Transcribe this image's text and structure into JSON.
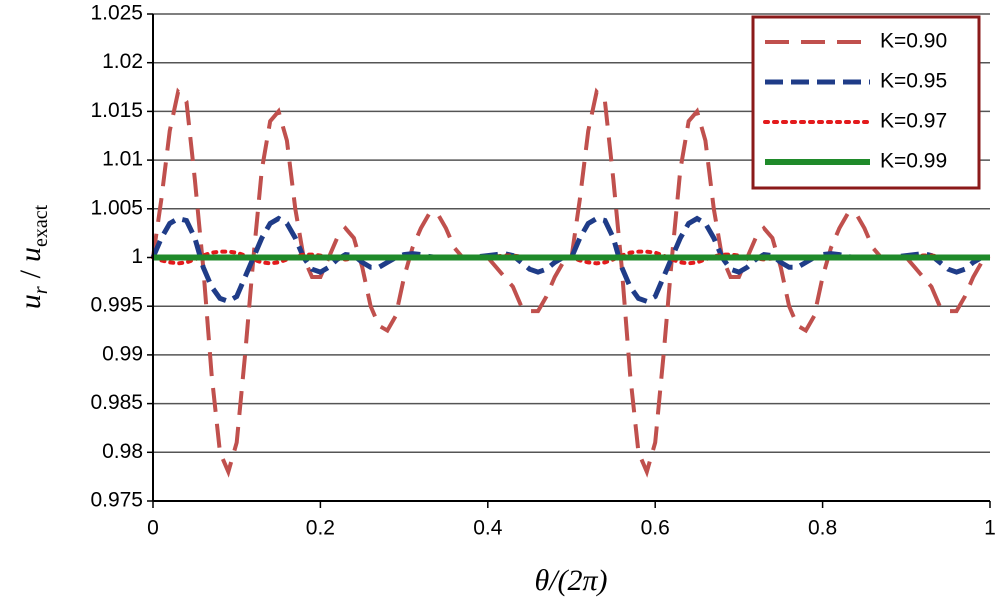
{
  "chart_data": {
    "type": "line",
    "xlabel": "θ/(2π)",
    "ylabel": [
      "u",
      "r",
      "/",
      "u",
      "exact"
    ],
    "xlim": [
      0,
      1
    ],
    "xticks": [
      0,
      0.2,
      0.4,
      0.6,
      0.8,
      1
    ],
    "ylim": [
      0.975,
      1.025
    ],
    "yticks": [
      0.975,
      0.98,
      0.985,
      0.99,
      0.995,
      1,
      1.005,
      1.01,
      1.015,
      1.02,
      1.025
    ],
    "grid": true,
    "legend": "upper right",
    "x": [
      0,
      0.01,
      0.02,
      0.03,
      0.04,
      0.05,
      0.06,
      0.07,
      0.08,
      0.09,
      0.1,
      0.11,
      0.12,
      0.13,
      0.14,
      0.15,
      0.16,
      0.17,
      0.18,
      0.19,
      0.2,
      0.21,
      0.22,
      0.23,
      0.24,
      0.25,
      0.26,
      0.27,
      0.28,
      0.29,
      0.3,
      0.31,
      0.32,
      0.33,
      0.34,
      0.35,
      0.36,
      0.37,
      0.38,
      0.39,
      0.4,
      0.41,
      0.42,
      0.43,
      0.44,
      0.45,
      0.46,
      0.47,
      0.48,
      0.49,
      0.5,
      0.51,
      0.52,
      0.53,
      0.54,
      0.55,
      0.56,
      0.57,
      0.58,
      0.59,
      0.6,
      0.61,
      0.62,
      0.63,
      0.64,
      0.65,
      0.66,
      0.67,
      0.68,
      0.69,
      0.7,
      0.71,
      0.72,
      0.73,
      0.74,
      0.75,
      0.76,
      0.77,
      0.78,
      0.79,
      0.8,
      0.81,
      0.82,
      0.83,
      0.84,
      0.85,
      0.86,
      0.87,
      0.88,
      0.89,
      0.9,
      0.91,
      0.92,
      0.93,
      0.94,
      0.95,
      0.96,
      0.97,
      0.98,
      0.99,
      1
    ],
    "series": [
      {
        "name": "K=0.90",
        "color": "#c0504d",
        "dash": "dashed",
        "line_width": 4,
        "values": [
          1.0,
          1.006,
          1.013,
          1.017,
          1.016,
          1.008,
          0.999,
          0.988,
          0.98,
          0.978,
          0.981,
          0.99,
          1.0,
          1.009,
          1.014,
          1.015,
          1.012,
          1.005,
          1.0,
          0.998,
          0.998,
          1.0,
          1.002,
          1.003,
          1.002,
          0.999,
          0.995,
          0.993,
          0.9925,
          0.994,
          0.998,
          1.001,
          1.003,
          1.0045,
          1.0045,
          1.003,
          1.001,
          1.0,
          1.0,
          1.0,
          1.0,
          0.999,
          0.998,
          0.997,
          0.995,
          0.9945,
          0.9945,
          0.996,
          0.998,
          0.9995,
          1.0,
          1.006,
          1.013,
          1.017,
          1.016,
          1.008,
          0.999,
          0.988,
          0.98,
          0.978,
          0.981,
          0.99,
          1.0,
          1.009,
          1.014,
          1.015,
          1.012,
          1.005,
          1.0,
          0.998,
          0.998,
          1.0,
          1.002,
          1.003,
          1.002,
          0.999,
          0.995,
          0.993,
          0.9925,
          0.994,
          0.998,
          1.001,
          1.003,
          1.0045,
          1.0045,
          1.003,
          1.001,
          1.0,
          1.0,
          1.0,
          1.0,
          0.999,
          0.998,
          0.997,
          0.995,
          0.9945,
          0.9945,
          0.996,
          0.998,
          0.9995,
          1.0
        ]
      },
      {
        "name": "K=0.95",
        "color": "#1f3c88",
        "dash": "dashed",
        "line_width": 5,
        "values": [
          1.0,
          1.002,
          1.0035,
          1.004,
          1.0038,
          1.002,
          0.999,
          0.997,
          0.9958,
          0.9955,
          0.996,
          0.998,
          1.0,
          1.002,
          1.0035,
          1.004,
          1.0035,
          1.002,
          1.0,
          0.9988,
          0.9985,
          0.999,
          0.9998,
          1.0003,
          1.0002,
          0.9995,
          0.999,
          0.999,
          0.9995,
          1.0,
          1.0003,
          1.0004,
          1.0003,
          1.0001,
          1.0,
          1.0,
          1.0,
          1.0,
          1.0,
          1.0001,
          1.0002,
          1.0003,
          1.0004,
          1.0002,
          0.9995,
          0.9988,
          0.9985,
          0.9988,
          0.9995,
          1.0,
          1.0,
          1.002,
          1.0035,
          1.004,
          1.0038,
          1.002,
          0.999,
          0.997,
          0.9958,
          0.9955,
          0.996,
          0.998,
          1.0,
          1.002,
          1.0035,
          1.004,
          1.0035,
          1.002,
          1.0,
          0.9988,
          0.9985,
          0.999,
          0.9998,
          1.0003,
          1.0002,
          0.9995,
          0.999,
          0.999,
          0.9995,
          1.0,
          1.0003,
          1.0004,
          1.0003,
          1.0001,
          1.0,
          1.0,
          1.0,
          1.0,
          1.0,
          1.0001,
          1.0002,
          1.0003,
          1.0004,
          1.0002,
          0.9995,
          0.9988,
          0.9985,
          0.9988,
          0.9995,
          1.0,
          1.0
        ]
      },
      {
        "name": "K=0.97",
        "color": "#e31a1c",
        "dash": "dotted",
        "line_width": 4,
        "values": [
          1.0,
          0.9997,
          0.9995,
          0.9994,
          0.9995,
          0.9998,
          1.0002,
          1.0005,
          1.0006,
          1.0006,
          1.0005,
          1.0002,
          0.9998,
          0.9995,
          0.9994,
          0.9995,
          0.9998,
          1.0001,
          1.0003,
          1.0003,
          1.0002,
          1.0,
          0.9999,
          0.9998,
          0.9999,
          1.0,
          1.0,
          1.0001,
          1.0001,
          1.0,
          1.0,
          1.0,
          1.0,
          1.0,
          1.0,
          1.0,
          1.0,
          1.0,
          1.0,
          1.0,
          1.0,
          1.0001,
          1.0002,
          1.0002,
          1.0001,
          1.0,
          0.9999,
          0.9999,
          1.0,
          1.0,
          1.0,
          0.9997,
          0.9995,
          0.9994,
          0.9995,
          0.9998,
          1.0002,
          1.0005,
          1.0006,
          1.0006,
          1.0005,
          1.0002,
          0.9998,
          0.9995,
          0.9994,
          0.9995,
          0.9998,
          1.0001,
          1.0003,
          1.0003,
          1.0002,
          1.0,
          0.9999,
          0.9998,
          0.9999,
          1.0,
          1.0,
          1.0001,
          1.0001,
          1.0,
          1.0,
          1.0,
          1.0,
          1.0,
          1.0,
          1.0,
          1.0,
          1.0,
          1.0,
          1.0,
          1.0,
          1.0001,
          1.0002,
          1.0002,
          1.0001,
          1.0,
          0.9999,
          0.9999,
          1.0,
          1.0,
          1.0
        ]
      },
      {
        "name": "K=0.99",
        "color": "#1f8a2a",
        "dash": "solid",
        "line_width": 6,
        "values": [
          1,
          1,
          1,
          1,
          1,
          1,
          1,
          1,
          1,
          1,
          1,
          1,
          1,
          1,
          1,
          1,
          1,
          1,
          1,
          1,
          1,
          1,
          1,
          1,
          1,
          1,
          1,
          1,
          1,
          1,
          1,
          1,
          1,
          1,
          1,
          1,
          1,
          1,
          1,
          1,
          1,
          1,
          1,
          1,
          1,
          1,
          1,
          1,
          1,
          1,
          1,
          1,
          1,
          1,
          1,
          1,
          1,
          1,
          1,
          1,
          1,
          1,
          1,
          1,
          1,
          1,
          1,
          1,
          1,
          1,
          1,
          1,
          1,
          1,
          1,
          1,
          1,
          1,
          1,
          1,
          1,
          1,
          1,
          1,
          1,
          1,
          1,
          1,
          1,
          1,
          1,
          1,
          1,
          1,
          1,
          1,
          1,
          1,
          1,
          1,
          1
        ]
      }
    ]
  }
}
